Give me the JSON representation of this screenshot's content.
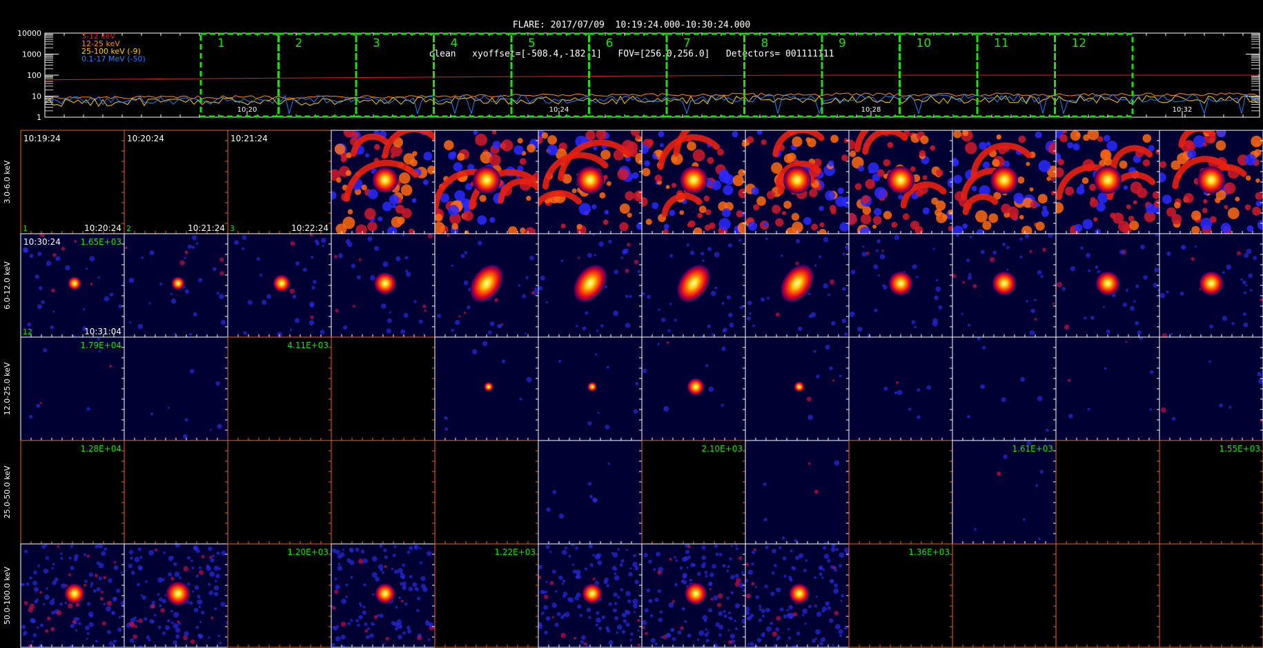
{
  "header": {
    "line1": "FLARE: 2017/07/09  10:19:24.000-10:30:24.000",
    "line2": "clean   xyoffset=[-508.4,-182.1]   FOV=[256.0,256.0]   Detectors= 001111111"
  },
  "chart_data": [
    {
      "type": "line",
      "name": "lightcurve",
      "y_scale": "log",
      "ylim": [
        1,
        10000
      ],
      "y_ticks": [
        "10000",
        "1000",
        "100",
        "10",
        "1"
      ],
      "x_ticks": [
        "10:20",
        "10:24",
        "10:28",
        "10:32"
      ],
      "series": [
        {
          "name": "3-12 keV",
          "color": "#e0201a",
          "level": 60,
          "level_end": 100
        },
        {
          "name": "12-25 keV",
          "color": "#ff8c1a",
          "level": 8,
          "level_end": 12
        },
        {
          "name": "25-100 keV (-9)",
          "color": "#ffd000",
          "level": 5,
          "level_end": 7
        },
        {
          "name": "0.1-17 MeV (-50)",
          "color": "#2a7fff",
          "level": 6,
          "level_end": 8
        }
      ],
      "intervals": [
        "1",
        "2",
        "3",
        "4",
        "5",
        "6",
        "7",
        "8",
        "9",
        "10",
        "11",
        "12"
      ],
      "interval_color": "#22dd11"
    },
    {
      "type": "heatmap",
      "name": "image_grid",
      "rows": [
        {
          "label": "3.0-6.0 keV"
        },
        {
          "label": "6.0-12.0 keV"
        },
        {
          "label": "12.0-25.0 keV"
        },
        {
          "label": "25.0-50.0 keV"
        },
        {
          "label": "50.0-100.0 keV"
        }
      ],
      "columns": 12,
      "panel_text": [
        {
          "r": 0,
          "c": 0,
          "tl": "10:19:24",
          "bl": "1",
          "br": "10:20:24"
        },
        {
          "r": 0,
          "c": 1,
          "tl": "10:20:24",
          "bl": "2",
          "br": "10:21:24"
        },
        {
          "r": 0,
          "c": 2,
          "tl": "10:21:24",
          "bl": "3",
          "br": "10:22:24"
        },
        {
          "r": 1,
          "c": 0,
          "tl": "10:30:24",
          "tr": "1.65E+03",
          "bl": "12",
          "br": "10:31:04"
        },
        {
          "r": 2,
          "c": 0,
          "tr": "1.79E+04"
        },
        {
          "r": 2,
          "c": 2,
          "tr": "4.11E+03"
        },
        {
          "r": 3,
          "c": 0,
          "tr": "1.28E+04"
        },
        {
          "r": 3,
          "c": 6,
          "tr": "2.10E+03"
        },
        {
          "r": 3,
          "c": 9,
          "tr": "1.61E+03"
        },
        {
          "r": 3,
          "c": 11,
          "tr": "1.55E+03"
        },
        {
          "r": 4,
          "c": 2,
          "tr": "1.20E+03"
        },
        {
          "r": 4,
          "c": 4,
          "tr": "1.22E+03"
        },
        {
          "r": 4,
          "c": 8,
          "tr": "1.36E+03"
        }
      ],
      "panel_state": [
        [
          "black",
          "black",
          "black",
          "blue",
          "blue",
          "blue",
          "blue",
          "blue",
          "blue",
          "blue",
          "blue",
          "blue"
        ],
        [
          "blue",
          "blue",
          "blue",
          "blue",
          "blue",
          "blue",
          "blue",
          "blue",
          "blue",
          "blue",
          "blue",
          "blue"
        ],
        [
          "blue",
          "blue",
          "black",
          "black",
          "blue",
          "blue",
          "blue",
          "blue",
          "blue",
          "blue",
          "blue",
          "blue"
        ],
        [
          "black",
          "black",
          "black",
          "black",
          "black",
          "blue",
          "black",
          "blue",
          "black",
          "blue",
          "black",
          "black"
        ],
        [
          "blue",
          "blue",
          "black",
          "blue",
          "black",
          "blue",
          "blue",
          "blue",
          "black",
          "black",
          "black",
          "black"
        ]
      ],
      "source_intensity": [
        [
          0,
          0,
          0,
          0.9,
          1.0,
          1.0,
          1.0,
          1.0,
          1.0,
          1.0,
          1.0,
          1.0
        ],
        [
          0.25,
          0.25,
          0.45,
          0.7,
          1.0,
          1.0,
          1.0,
          1.0,
          0.8,
          0.8,
          0.8,
          0.8
        ],
        [
          0,
          0,
          0,
          0,
          0.05,
          0.05,
          0.45,
          0.1,
          0,
          0,
          0,
          0
        ],
        [
          0,
          0,
          0,
          0,
          0,
          0,
          0,
          0,
          0,
          0,
          0,
          0
        ],
        [
          0.6,
          0.8,
          0,
          0.6,
          0,
          0.6,
          0.7,
          0.6,
          0,
          0,
          0,
          0
        ]
      ],
      "colors": {
        "panel_blue": "#000033",
        "frame_orange": "#e8661a",
        "label_green": "#22dd11"
      }
    }
  ]
}
